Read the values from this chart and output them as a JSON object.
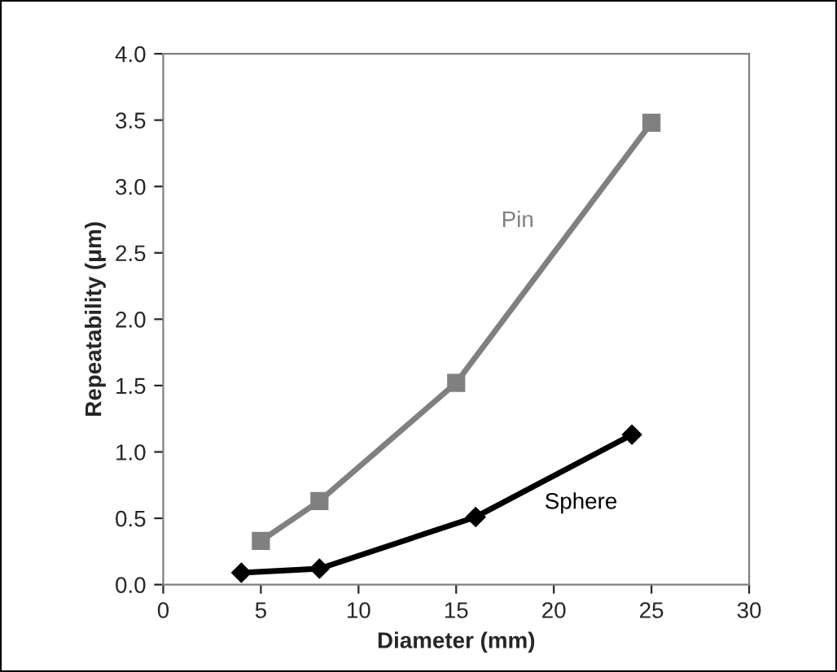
{
  "chart_data": {
    "type": "line",
    "xlabel": "Diameter (mm)",
    "ylabel": "Repeatability (μm)",
    "series": [
      {
        "name": "Pin",
        "color": "#808080",
        "marker": "square",
        "x": [
          5,
          8,
          15,
          25
        ],
        "values": [
          0.33,
          0.63,
          1.52,
          3.48
        ]
      },
      {
        "name": "Sphere",
        "color": "#000000",
        "marker": "diamond",
        "x": [
          4,
          8,
          16,
          24
        ],
        "values": [
          0.09,
          0.12,
          0.51,
          1.13
        ]
      }
    ],
    "xlim": [
      0,
      30
    ],
    "xticks": [
      0,
      5,
      10,
      15,
      20,
      25,
      30
    ],
    "ylim": [
      0,
      4
    ],
    "yticks": [
      {
        "value": 0,
        "label": "0.0"
      },
      {
        "value": 0.5,
        "label": "0.5"
      },
      {
        "value": 1,
        "label": "1.0"
      },
      {
        "value": 1.5,
        "label": "1.5"
      },
      {
        "value": 2,
        "label": "2.0"
      },
      {
        "value": 2.5,
        "label": "2.5"
      },
      {
        "value": 3,
        "label": "3.0"
      },
      {
        "value": 3.5,
        "label": "3.5"
      },
      {
        "value": 4,
        "label": "4.0"
      }
    ],
    "grid": false,
    "legend": false,
    "line_style": "solid"
  }
}
